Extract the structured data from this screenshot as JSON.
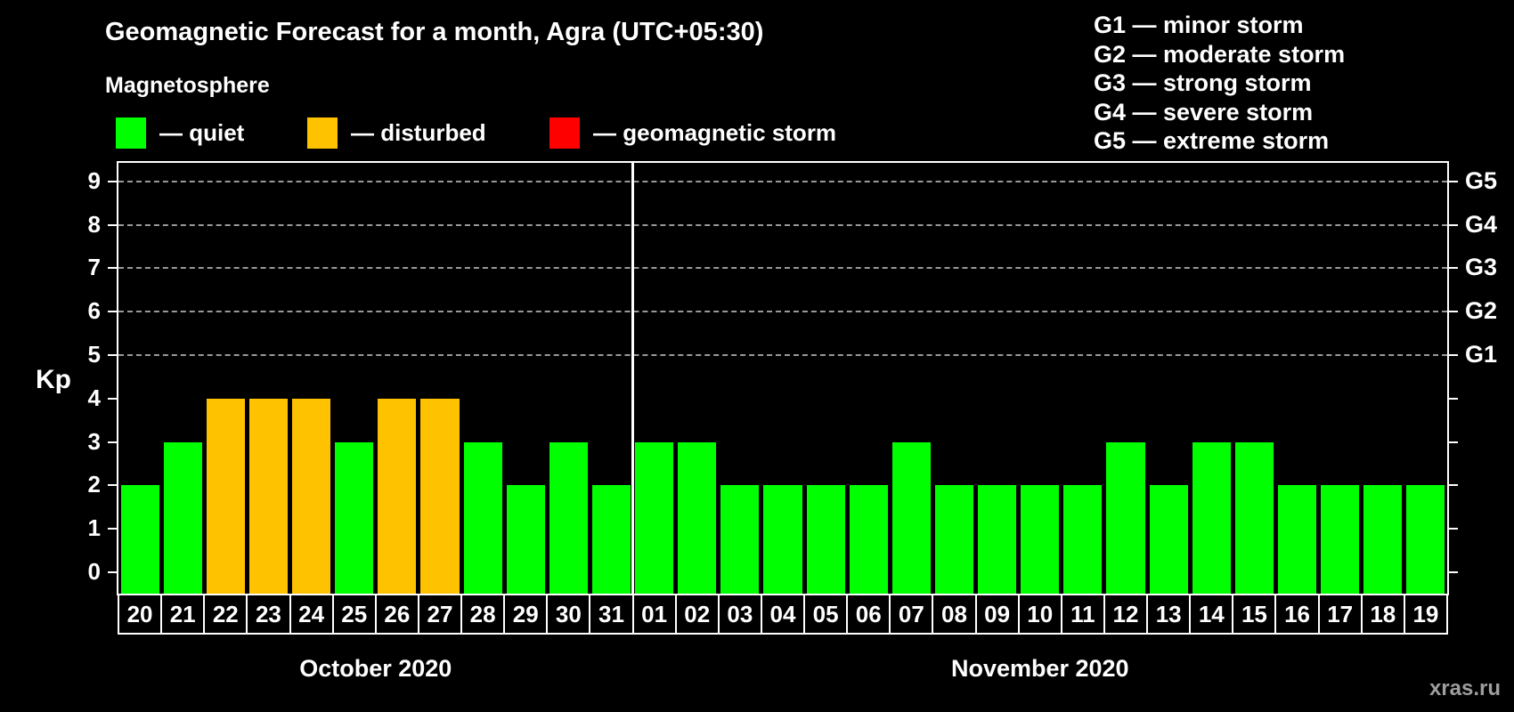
{
  "header": {
    "title": "Geomagnetic Forecast for a month, Agra (UTC+05:30)",
    "subtitle": "Magnetosphere"
  },
  "legend": {
    "items": [
      {
        "name": "quiet",
        "label": "— quiet",
        "color": "#00ff00"
      },
      {
        "name": "disturbed",
        "label": "— disturbed",
        "color": "#ffc200"
      },
      {
        "name": "storm",
        "label": "— geomagnetic storm",
        "color": "#ff0000"
      }
    ]
  },
  "g_scale_legend": {
    "lines": [
      "G1 — minor storm",
      "G2 — moderate storm",
      "G3 — strong storm",
      "G4 — severe storm",
      "G5 — extreme storm"
    ]
  },
  "watermark": "xras.ru",
  "chart_data": {
    "type": "bar",
    "title": "Geomagnetic Forecast for a month, Agra (UTC+05:30)",
    "xlabel": "",
    "ylabel": "Kp",
    "ylim": [
      0,
      9
    ],
    "yticks": [
      0,
      1,
      2,
      3,
      4,
      5,
      6,
      7,
      8,
      9
    ],
    "gridlines_at_kp": [
      5,
      6,
      7,
      8,
      9
    ],
    "grid": "dashed horizontal gridlines at Kp 5-9 only",
    "legend_position": "top",
    "right_axis": [
      {
        "label": "G1",
        "kp": 5
      },
      {
        "label": "G2",
        "kp": 6
      },
      {
        "label": "G3",
        "kp": 7
      },
      {
        "label": "G4",
        "kp": 8
      },
      {
        "label": "G5",
        "kp": 9
      }
    ],
    "state_colors": {
      "quiet": "#00ff00",
      "disturbed": "#ffc200",
      "storm": "#ff0000"
    },
    "months": [
      {
        "label": "October 2020",
        "days": [
          {
            "day": "20",
            "kp": 2,
            "state": "quiet"
          },
          {
            "day": "21",
            "kp": 3,
            "state": "quiet"
          },
          {
            "day": "22",
            "kp": 4,
            "state": "disturbed"
          },
          {
            "day": "23",
            "kp": 4,
            "state": "disturbed"
          },
          {
            "day": "24",
            "kp": 4,
            "state": "disturbed"
          },
          {
            "day": "25",
            "kp": 3,
            "state": "quiet"
          },
          {
            "day": "26",
            "kp": 4,
            "state": "disturbed"
          },
          {
            "day": "27",
            "kp": 4,
            "state": "disturbed"
          },
          {
            "day": "28",
            "kp": 3,
            "state": "quiet"
          },
          {
            "day": "29",
            "kp": 2,
            "state": "quiet"
          },
          {
            "day": "30",
            "kp": 3,
            "state": "quiet"
          },
          {
            "day": "31",
            "kp": 2,
            "state": "quiet"
          }
        ]
      },
      {
        "label": "November 2020",
        "days": [
          {
            "day": "01",
            "kp": 3,
            "state": "quiet"
          },
          {
            "day": "02",
            "kp": 3,
            "state": "quiet"
          },
          {
            "day": "03",
            "kp": 2,
            "state": "quiet"
          },
          {
            "day": "04",
            "kp": 2,
            "state": "quiet"
          },
          {
            "day": "05",
            "kp": 2,
            "state": "quiet"
          },
          {
            "day": "06",
            "kp": 2,
            "state": "quiet"
          },
          {
            "day": "07",
            "kp": 3,
            "state": "quiet"
          },
          {
            "day": "08",
            "kp": 2,
            "state": "quiet"
          },
          {
            "day": "09",
            "kp": 2,
            "state": "quiet"
          },
          {
            "day": "10",
            "kp": 2,
            "state": "quiet"
          },
          {
            "day": "11",
            "kp": 2,
            "state": "quiet"
          },
          {
            "day": "12",
            "kp": 3,
            "state": "quiet"
          },
          {
            "day": "13",
            "kp": 2,
            "state": "quiet"
          },
          {
            "day": "14",
            "kp": 3,
            "state": "quiet"
          },
          {
            "day": "15",
            "kp": 3,
            "state": "quiet"
          },
          {
            "day": "16",
            "kp": 2,
            "state": "quiet"
          },
          {
            "day": "17",
            "kp": 2,
            "state": "quiet"
          },
          {
            "day": "18",
            "kp": 2,
            "state": "quiet"
          },
          {
            "day": "19",
            "kp": 2,
            "state": "quiet"
          }
        ]
      }
    ]
  }
}
